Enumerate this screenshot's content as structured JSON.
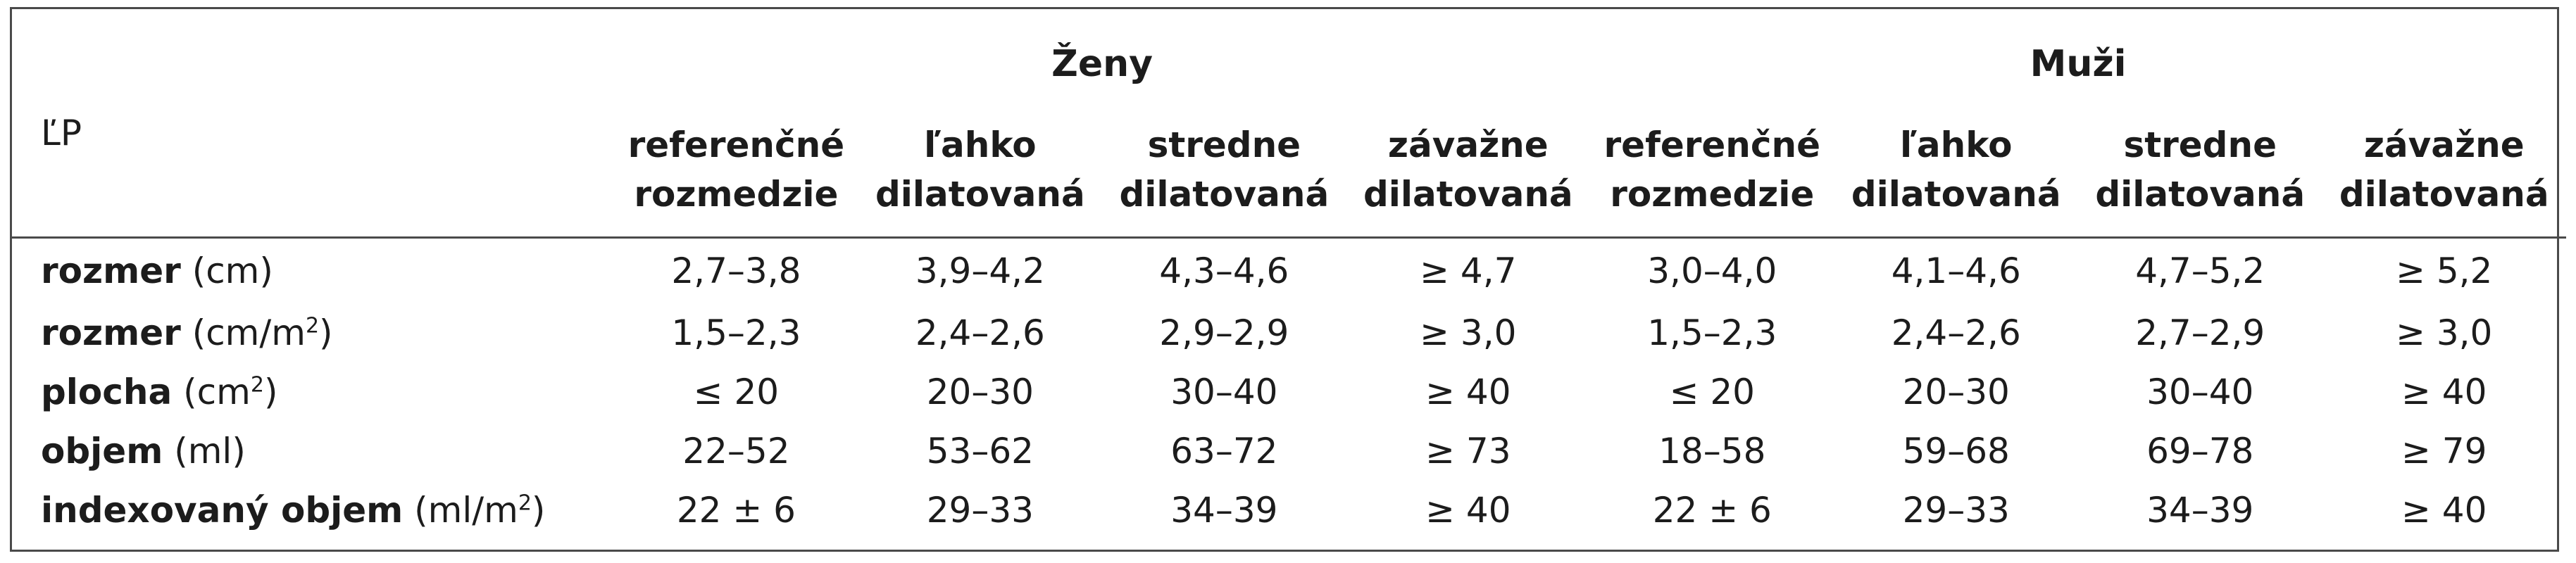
{
  "header": {
    "row_label": "ĽP",
    "groups": [
      "Ženy",
      "Muži"
    ],
    "subcolumns": [
      [
        "referenčné",
        "rozmedzie"
      ],
      [
        "ľahko",
        "dilatovaná"
      ],
      [
        "stredne",
        "dilatovaná"
      ],
      [
        "závažne",
        "dilatovaná"
      ],
      [
        "referenčné",
        "rozmedzie"
      ],
      [
        "ľahko",
        "dilatovaná"
      ],
      [
        "stredne",
        "dilatovaná"
      ],
      [
        "závažne",
        "dilatovaná"
      ]
    ]
  },
  "rows": [
    {
      "name": "rozmer",
      "unit_pre": "(cm",
      "unit_sup": "",
      "unit_post": ")",
      "values": [
        "2,7–3,8",
        "3,9–4,2",
        "4,3–4,6",
        "≥ 4,7",
        "3,0–4,0",
        "4,1–4,6",
        "4,7–5,2",
        "≥ 5,2"
      ]
    },
    {
      "name": "rozmer",
      "unit_pre": "(cm/m",
      "unit_sup": "2",
      "unit_post": ")",
      "values": [
        "1,5–2,3",
        "2,4–2,6",
        "2,9–2,9",
        "≥ 3,0",
        "1,5–2,3",
        "2,4–2,6",
        "2,7–2,9",
        "≥ 3,0"
      ]
    },
    {
      "name": "plocha",
      "unit_pre": "(cm",
      "unit_sup": "2",
      "unit_post": ")",
      "values": [
        "≤ 20",
        "20–30",
        "30–40",
        "≥ 40",
        "≤ 20",
        "20–30",
        "30–40",
        "≥ 40"
      ]
    },
    {
      "name": "objem",
      "unit_pre": "(ml",
      "unit_sup": "",
      "unit_post": ")",
      "values": [
        "22–52",
        "53–62",
        "63–72",
        "≥ 73",
        "18–58",
        "59–68",
        "69–78",
        "≥ 79"
      ]
    },
    {
      "name": "indexovaný objem",
      "unit_pre": "(ml/m",
      "unit_sup": "2",
      "unit_post": ")",
      "values": [
        "22 ± 6",
        "29–33",
        "34–39",
        "≥ 40",
        "22 ± 6",
        "29–33",
        "34–39",
        "≥ 40"
      ]
    }
  ]
}
